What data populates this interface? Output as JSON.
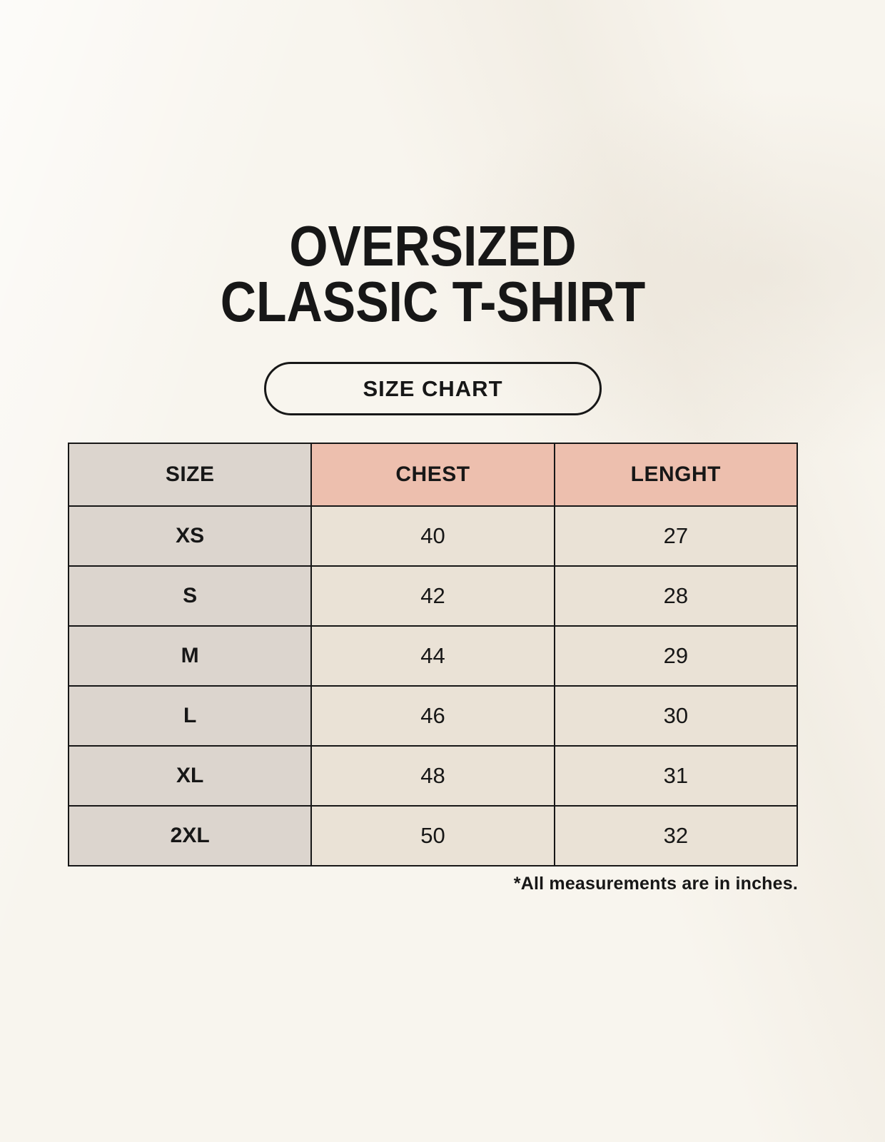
{
  "title": {
    "line1": "OVERSIZED",
    "line2": "CLASSIC T-SHIRT"
  },
  "badge": {
    "label": "SIZE CHART"
  },
  "footnote": "*All measurements are in inches.",
  "chart_data": {
    "type": "table",
    "title": "OVERSIZED CLASSIC T-SHIRT — SIZE CHART",
    "columns": [
      "SIZE",
      "CHEST",
      "LENGHT"
    ],
    "rows": [
      [
        "XS",
        "40",
        "27"
      ],
      [
        "S",
        "42",
        "28"
      ],
      [
        "M",
        "44",
        "29"
      ],
      [
        "L",
        "46",
        "30"
      ],
      [
        "XL",
        "48",
        "31"
      ],
      [
        "2XL",
        "50",
        "32"
      ]
    ],
    "units": "inches"
  },
  "colors": {
    "background": "#f8f5ee",
    "size_column": "#dcd5ce",
    "header_accent": "#edbfae",
    "data_cell": "#eae2d6",
    "border": "#171717",
    "text": "#171717"
  }
}
